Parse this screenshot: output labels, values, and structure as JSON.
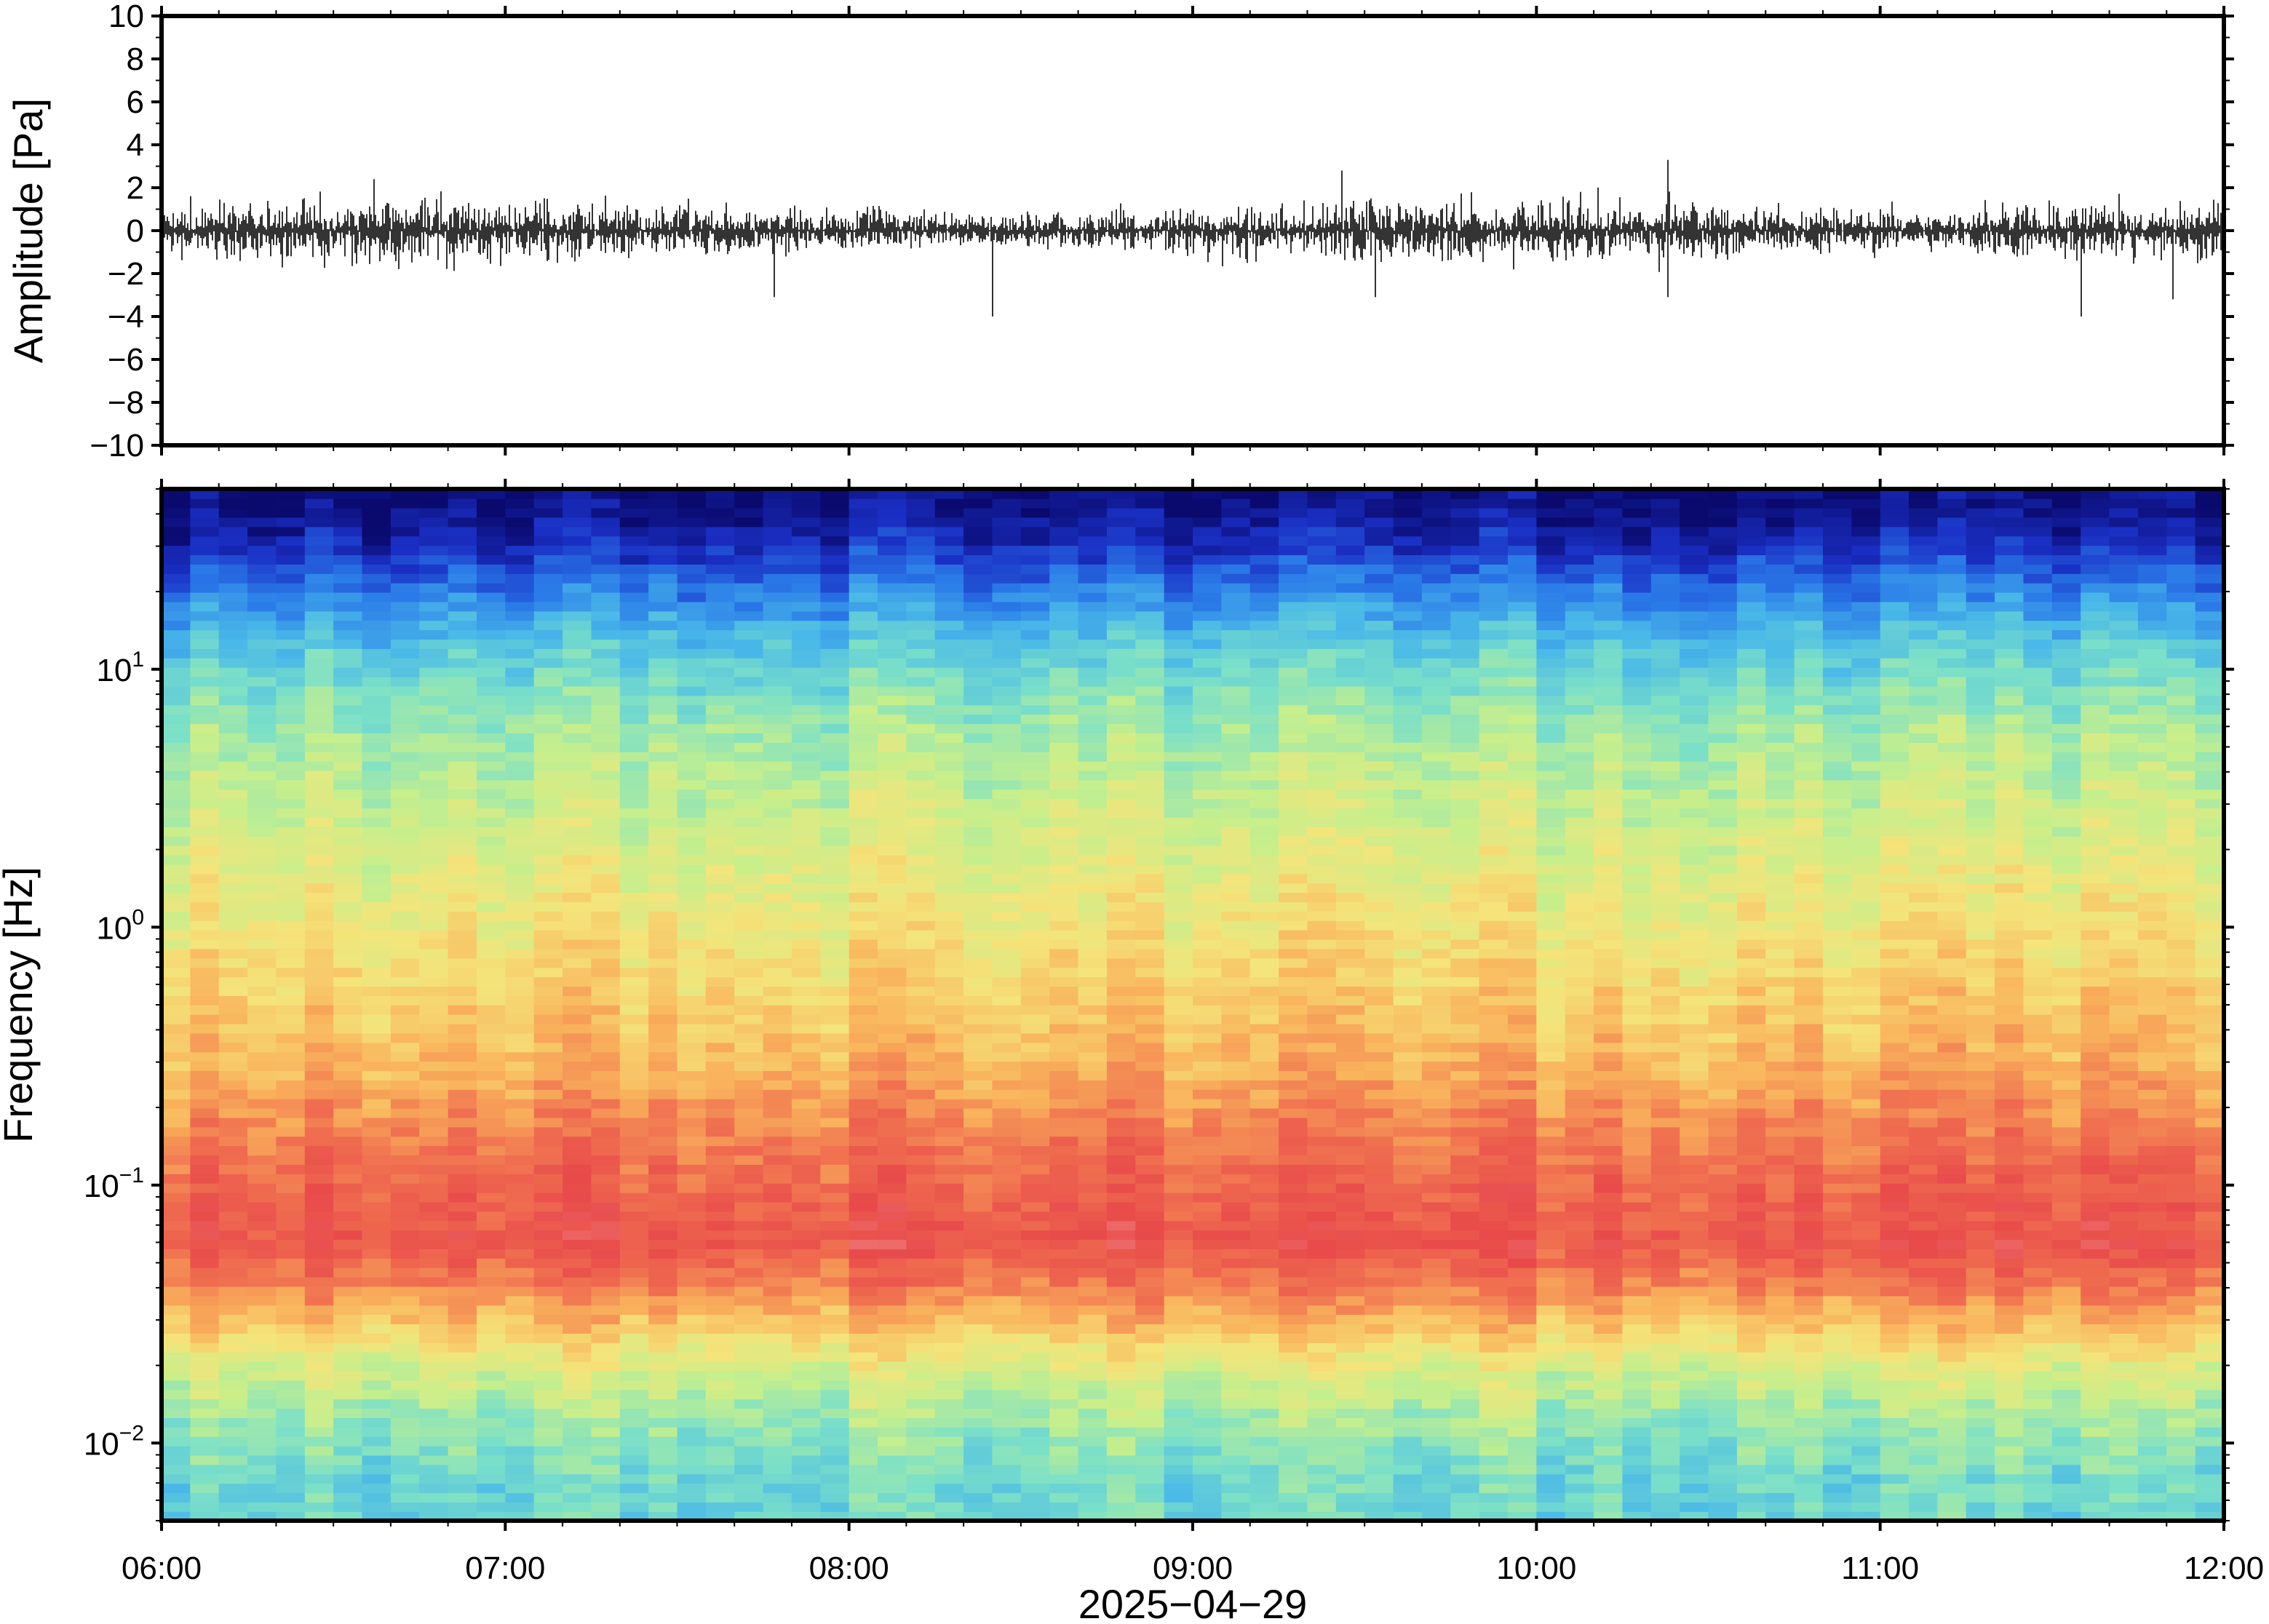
{
  "chart_data": [
    {
      "type": "line",
      "panel": "waveform",
      "ylabel": "Amplitude [Pa]",
      "ylim": [
        -10,
        10
      ],
      "yticks": [
        10,
        8,
        6,
        4,
        2,
        0,
        -2,
        -4,
        -6,
        -8,
        -10
      ],
      "ytick_labels": [
        "10",
        "8",
        "6",
        "4",
        "2",
        "0",
        "−2",
        "−4",
        "−6",
        "−8",
        "−10"
      ],
      "xlim": [
        "06:00",
        "12:00"
      ],
      "noise_envelope": {
        "typical_peak": 1.3,
        "max_positive": 3.3,
        "max_negative": -4.0
      },
      "notable_spikes": [
        {
          "time": "06:37",
          "value": 2.4
        },
        {
          "time": "07:47",
          "value": -3.1
        },
        {
          "time": "08:25",
          "value": -4.0
        },
        {
          "time": "09:26",
          "value": 2.8
        },
        {
          "time": "09:32",
          "value": -3.1
        },
        {
          "time": "10:23",
          "value": 3.3
        },
        {
          "time": "10:23",
          "value": -3.1
        },
        {
          "time": "11:35",
          "value": -4.0
        },
        {
          "time": "11:51",
          "value": -3.2
        }
      ],
      "line_color": "#000000"
    },
    {
      "type": "heatmap",
      "panel": "spectrogram",
      "ylabel": "Frequency [Hz]",
      "yscale": "log",
      "ylim": [
        0.005,
        50
      ],
      "yticks": [
        10,
        1,
        0.1,
        0.01
      ],
      "ytick_labels": [
        {
          "base": "10",
          "exp": "1"
        },
        {
          "base": "10",
          "exp": "0"
        },
        {
          "base": "10",
          "exp": "−1"
        },
        {
          "base": "10",
          "exp": "−2"
        }
      ],
      "xlim": [
        "06:00",
        "12:00"
      ],
      "colormap": [
        "#0a0a6e",
        "#1a2fc4",
        "#2a7ae8",
        "#49b8e8",
        "#7be0c8",
        "#c6ef8c",
        "#f4e47a",
        "#f9b45c",
        "#f07050",
        "#e84a4a",
        "#f48a8a"
      ],
      "level_profile_by_frequency": [
        {
          "freq": 45,
          "level": 0.02
        },
        {
          "freq": 30,
          "level": 0.1
        },
        {
          "freq": 20,
          "level": 0.22
        },
        {
          "freq": 12,
          "level": 0.35
        },
        {
          "freq": 6,
          "level": 0.46
        },
        {
          "freq": 2,
          "level": 0.55
        },
        {
          "freq": 0.8,
          "level": 0.62
        },
        {
          "freq": 0.3,
          "level": 0.7
        },
        {
          "freq": 0.12,
          "level": 0.82
        },
        {
          "freq": 0.06,
          "level": 0.88
        },
        {
          "freq": 0.035,
          "level": 0.74
        },
        {
          "freq": 0.02,
          "level": 0.55
        },
        {
          "freq": 0.012,
          "level": 0.45
        },
        {
          "freq": 0.007,
          "level": 0.38
        }
      ]
    }
  ],
  "xaxis": {
    "ticks": [
      "06:00",
      "07:00",
      "08:00",
      "09:00",
      "10:00",
      "11:00",
      "12:00"
    ],
    "date_label": "2025−04−29"
  }
}
